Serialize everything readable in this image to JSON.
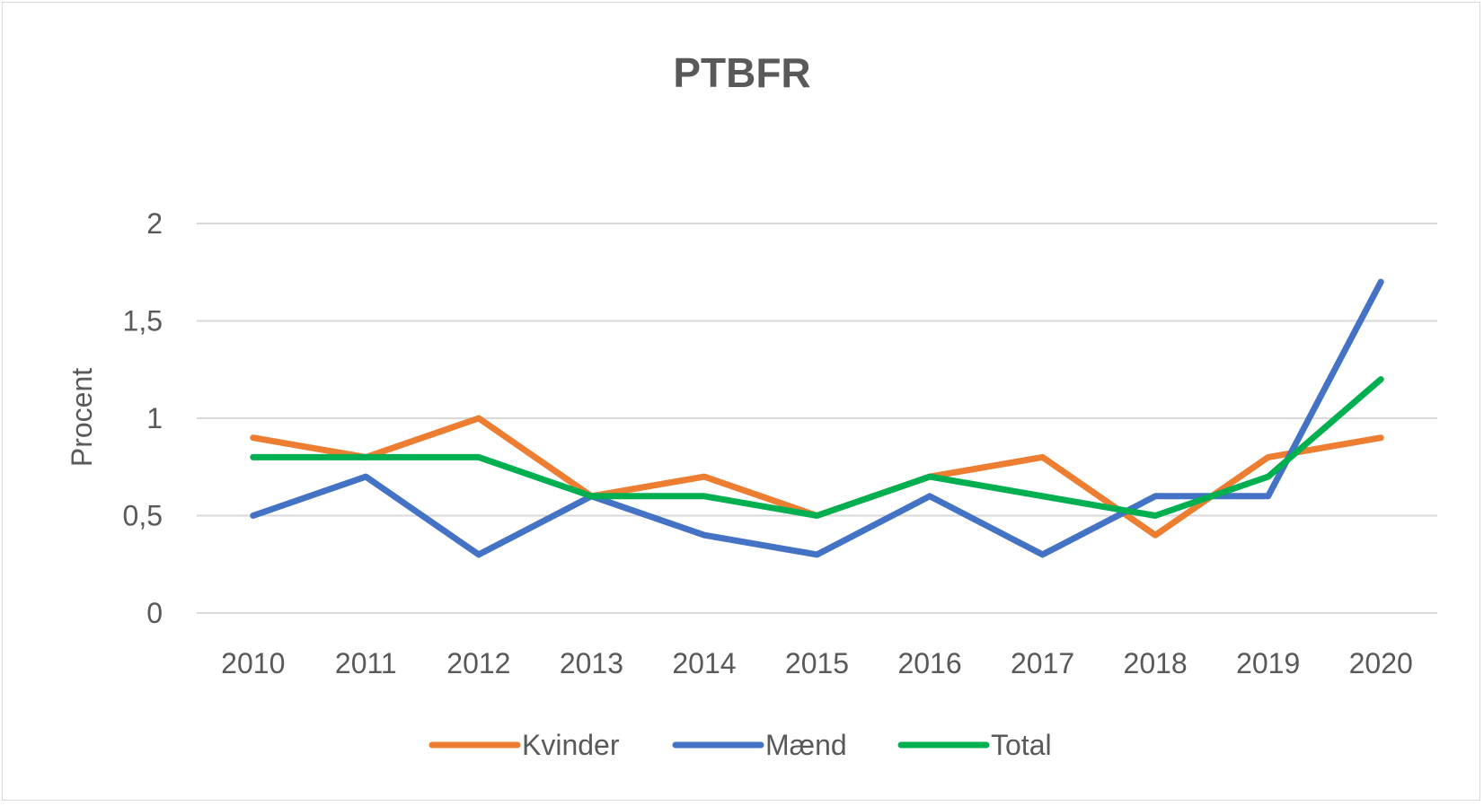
{
  "chart_data": {
    "type": "line",
    "title": "PTBFR",
    "xlabel": "",
    "ylabel": "Procent",
    "categories": [
      "2010",
      "2011",
      "2012",
      "2013",
      "2014",
      "2015",
      "2016",
      "2017",
      "2018",
      "2019",
      "2020"
    ],
    "ylim": [
      0,
      2
    ],
    "yticks": [
      0,
      0.5,
      1,
      1.5,
      2
    ],
    "ytick_labels": [
      "0",
      "0,5",
      "1",
      "1,5",
      "2"
    ],
    "grid": true,
    "legend_position": "bottom",
    "series": [
      {
        "name": "Kvinder",
        "color": "#ED7D31",
        "values": [
          0.9,
          0.8,
          1.0,
          0.6,
          0.7,
          0.5,
          0.7,
          0.8,
          0.4,
          0.8,
          0.9
        ]
      },
      {
        "name": "Mænd",
        "color": "#4472C4",
        "values": [
          0.5,
          0.7,
          0.3,
          0.6,
          0.4,
          0.3,
          0.6,
          0.3,
          0.6,
          0.6,
          1.7
        ]
      },
      {
        "name": "Total",
        "color": "#00B050",
        "values": [
          0.8,
          0.8,
          0.8,
          0.6,
          0.6,
          0.5,
          0.7,
          0.6,
          0.5,
          0.7,
          1.2
        ]
      }
    ]
  }
}
